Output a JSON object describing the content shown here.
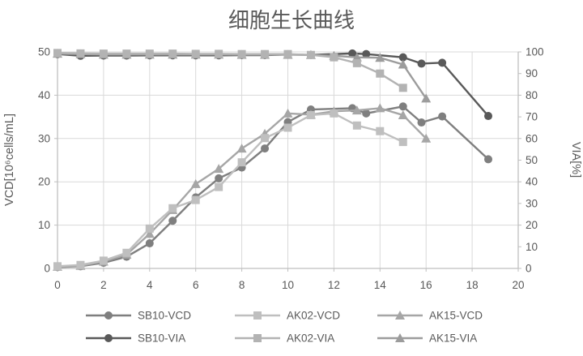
{
  "chart_data": {
    "type": "line",
    "title": "细胞生长曲线",
    "x_axis": {
      "min": 0,
      "max": 20,
      "ticks": [
        0,
        2,
        4,
        6,
        8,
        10,
        12,
        14,
        16,
        18,
        20
      ]
    },
    "y_axis_left": {
      "label": "VCD[10⁶cells/mL]",
      "min": 0,
      "max": 50,
      "ticks": [
        0,
        10,
        20,
        30,
        40,
        50
      ]
    },
    "y_axis_right": {
      "label": "VIA[%]",
      "min": 0,
      "max": 100,
      "ticks": [
        0,
        10,
        20,
        30,
        40,
        50,
        60,
        70,
        80,
        90,
        100
      ]
    },
    "grid_color": "#d9d9d9",
    "axis_color": "#bfbfbf",
    "text_color": "#595959",
    "series": [
      {
        "name": "SB10-VCD",
        "axis": "left",
        "marker": "circle",
        "color": "#7f7f7f",
        "x": [
          0,
          1,
          2,
          3,
          4,
          5,
          6,
          7,
          8,
          9,
          10,
          11,
          12.8,
          13.4,
          15,
          15.8,
          16.7,
          18.7
        ],
        "y": [
          0.3,
          0.5,
          1.3,
          2.7,
          5.8,
          11.0,
          16.4,
          20.8,
          23.3,
          27.7,
          33.8,
          36.7,
          37.0,
          35.8,
          37.4,
          33.7,
          35.1,
          25.2
        ]
      },
      {
        "name": "AK02-VCD",
        "axis": "left",
        "marker": "square",
        "color": "#bfbfbf",
        "x": [
          0,
          1,
          2,
          3,
          4,
          5,
          6,
          7,
          8,
          9,
          10,
          11,
          12,
          13,
          14,
          15
        ],
        "y": [
          0.5,
          0.8,
          1.8,
          3.6,
          9.2,
          13.9,
          15.8,
          18.8,
          24.5,
          30.1,
          32.5,
          35.4,
          35.8,
          33.0,
          31.7,
          29.2
        ]
      },
      {
        "name": "AK15-VCD",
        "axis": "left",
        "marker": "triangle",
        "color": "#a6a6a6",
        "x": [
          0,
          1,
          2,
          3,
          4,
          5,
          6,
          7,
          8,
          9,
          10,
          11,
          12,
          13,
          14,
          15,
          16
        ],
        "y": [
          0.4,
          0.6,
          1.6,
          3.2,
          8.0,
          13.5,
          19.5,
          23.0,
          27.7,
          31.1,
          35.8,
          35.5,
          36.3,
          36.5,
          37.0,
          35.4,
          30.0
        ]
      },
      {
        "name": "SB10-VIA",
        "axis": "right",
        "marker": "circle",
        "color": "#595959",
        "x": [
          0,
          1,
          2,
          3,
          4,
          5,
          6,
          7,
          8,
          9,
          10,
          11,
          12.8,
          13.4,
          15,
          15.8,
          16.7,
          18.7
        ],
        "y": [
          99.0,
          98.2,
          98.3,
          98.3,
          98.4,
          98.4,
          98.4,
          98.4,
          98.5,
          98.5,
          98.8,
          98.6,
          99.3,
          99.0,
          97.5,
          94.6,
          95.0,
          70.4
        ]
      },
      {
        "name": "AK02-VIA",
        "axis": "right",
        "marker": "square",
        "color": "#b3b3b3",
        "x": [
          0,
          1,
          2,
          3,
          4,
          5,
          6,
          7,
          8,
          9,
          10,
          11,
          12,
          13,
          14,
          15
        ],
        "y": [
          99.5,
          99.3,
          99.2,
          99.2,
          99.2,
          99.2,
          99.1,
          99.1,
          99.0,
          99.0,
          99.0,
          98.6,
          97.5,
          94.8,
          90.0,
          83.4
        ]
      },
      {
        "name": "AK15-VIA",
        "axis": "right",
        "marker": "triangle",
        "color": "#9c9c9c",
        "x": [
          0,
          1,
          2,
          3,
          4,
          5,
          6,
          7,
          8,
          9,
          10,
          11,
          12,
          13,
          14,
          15,
          16
        ],
        "y": [
          99.2,
          99.0,
          98.8,
          98.8,
          98.8,
          98.8,
          98.8,
          98.8,
          98.7,
          98.7,
          98.7,
          98.6,
          98.2,
          97.5,
          97.3,
          94.2,
          78.5
        ]
      }
    ],
    "legend": {
      "rows": [
        [
          "SB10-VCD",
          "AK02-VCD",
          "AK15-VCD"
        ],
        [
          "SB10-VIA",
          "AK02-VIA",
          "AK15-VIA"
        ]
      ]
    }
  }
}
